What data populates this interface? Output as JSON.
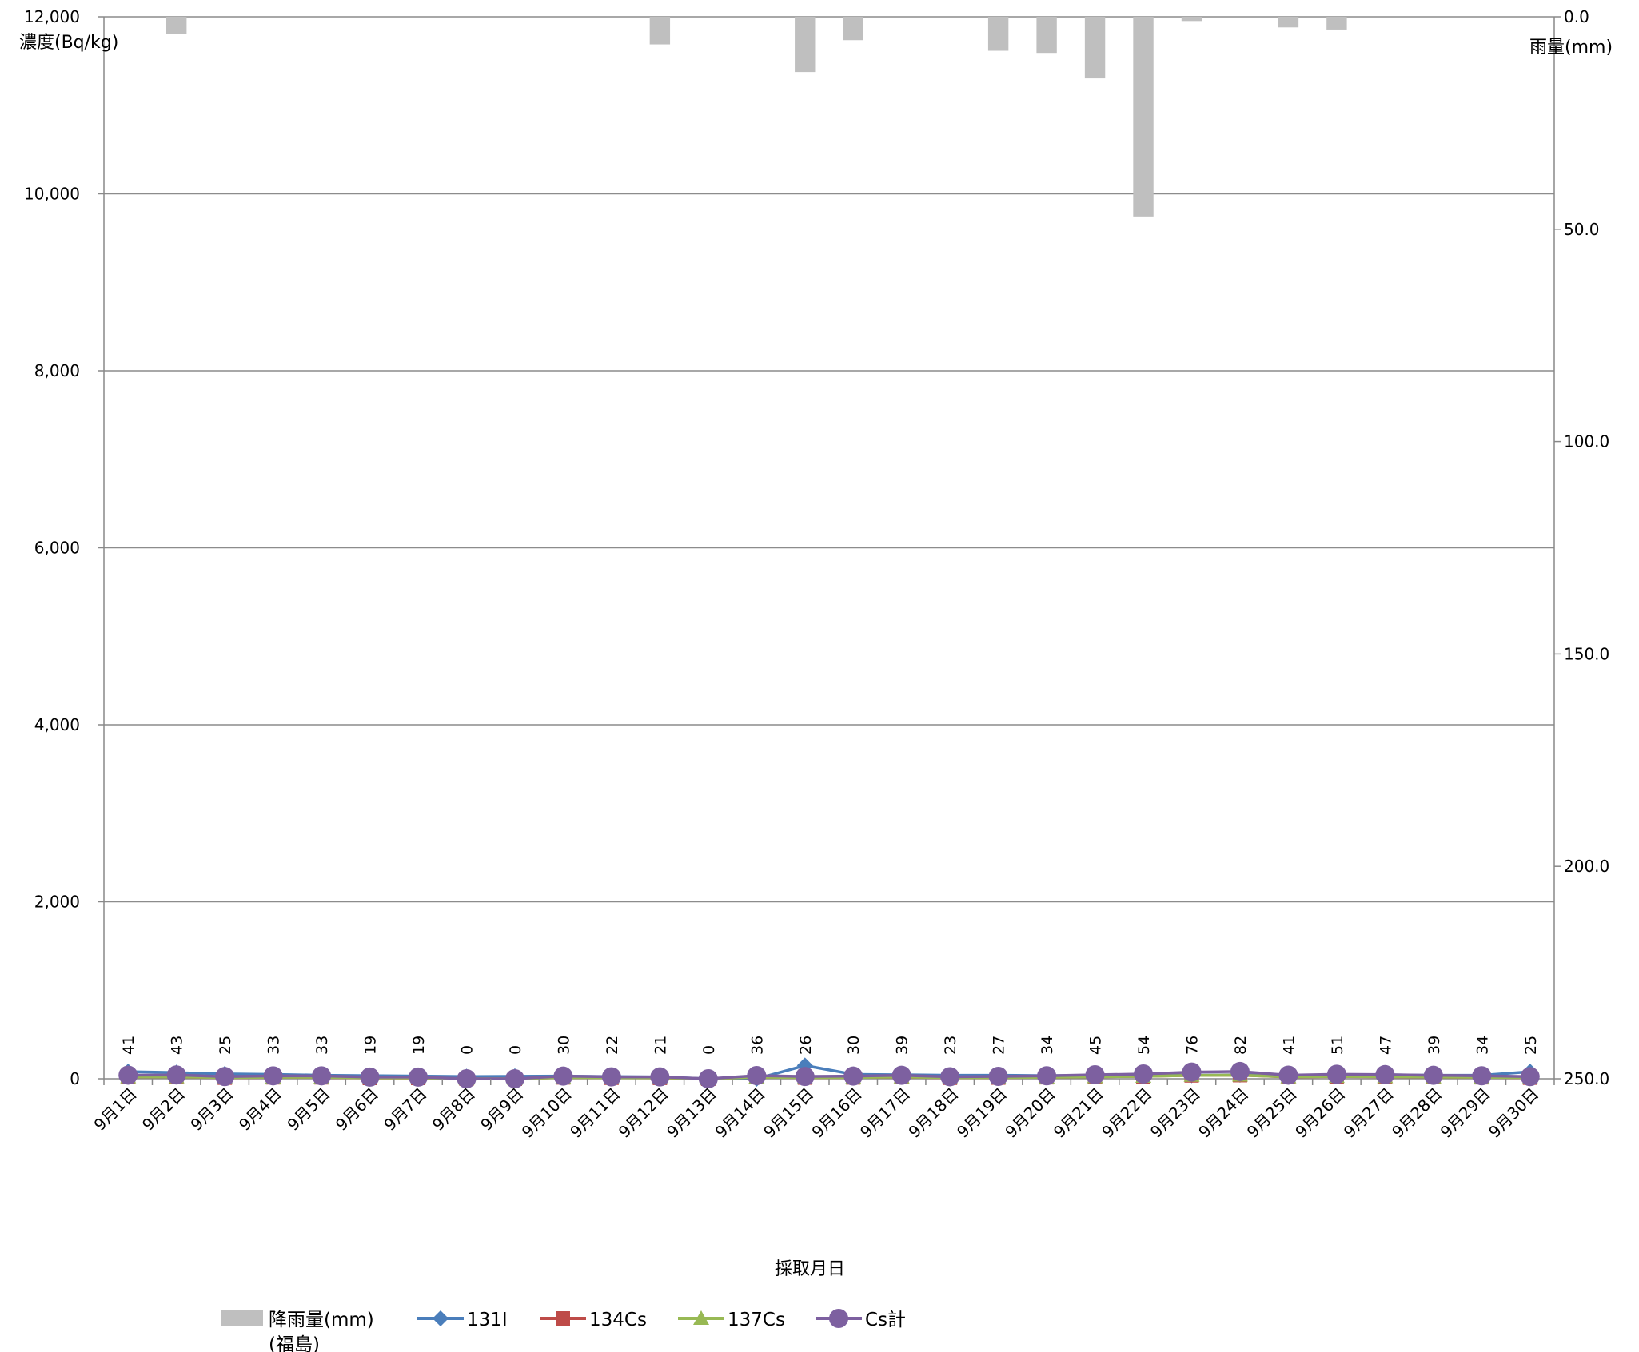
{
  "chart_data": {
    "type": "line",
    "xlabel": "採取月日",
    "ylabel_left": "濃度(Bq/kg)",
    "ylabel_right": "雨量(mm)",
    "ylim_left": [
      0,
      12000
    ],
    "ylim_right": [
      0,
      250
    ],
    "right_axis_inverted": true,
    "left_ticks": [
      "0",
      "2,000",
      "4,000",
      "6,000",
      "8,000",
      "10,000",
      "12,000"
    ],
    "right_ticks": [
      "0.0",
      "50.0",
      "100.0",
      "150.0",
      "200.0",
      "250.0"
    ],
    "grid": true,
    "legend_position": "bottom",
    "categories": [
      "9月1日",
      "9月2日",
      "9月3日",
      "9月4日",
      "9月5日",
      "9月6日",
      "9月7日",
      "9月8日",
      "9月9日",
      "9月10日",
      "9月11日",
      "9月12日",
      "9月13日",
      "9月14日",
      "9月15日",
      "9月16日",
      "9月17日",
      "9月18日",
      "9月19日",
      "9月20日",
      "9月21日",
      "9月22日",
      "9月23日",
      "9月24日",
      "9月25日",
      "9月26日",
      "9月27日",
      "9月28日",
      "9月29日",
      "9月30日"
    ],
    "data_labels": [
      "41",
      "43",
      "25",
      "33",
      "33",
      "19",
      "19",
      "0",
      "0",
      "30",
      "22",
      "21",
      "0",
      "36",
      "26",
      "30",
      "39",
      "23",
      "27",
      "34",
      "45",
      "54",
      "76",
      "82",
      "41",
      "51",
      "47",
      "39",
      "34",
      "25"
    ],
    "rain": {
      "name": "降雨量(mm)",
      "name_line2": "(福島)",
      "color": "#bfbfbf",
      "values": [
        0,
        4,
        0,
        0,
        0,
        0,
        0,
        0,
        0,
        0,
        0,
        6.5,
        0,
        0,
        13,
        5.5,
        0,
        0,
        8,
        8.5,
        14.5,
        47,
        1,
        0,
        2.5,
        3,
        0,
        0,
        0,
        0
      ]
    },
    "series": [
      {
        "name": "131I",
        "color": "#4a7ebb",
        "marker": "diamond",
        "values": [
          80,
          70,
          55,
          50,
          40,
          35,
          30,
          25,
          28,
          30,
          25,
          20,
          0,
          0,
          150,
          50,
          45,
          40,
          40,
          35,
          40,
          45,
          40,
          45,
          40,
          42,
          45,
          40,
          40,
          80
        ]
      },
      {
        "name": "134Cs",
        "color": "#be4b48",
        "marker": "square",
        "values": [
          20,
          21,
          12,
          16,
          16,
          9,
          9,
          0,
          0,
          15,
          11,
          10,
          0,
          18,
          13,
          15,
          19,
          11,
          13,
          17,
          22,
          27,
          38,
          41,
          20,
          25,
          23,
          19,
          17,
          12
        ]
      },
      {
        "name": "137Cs",
        "color": "#98b954",
        "marker": "triangle",
        "values": [
          21,
          22,
          13,
          17,
          17,
          10,
          10,
          0,
          0,
          15,
          11,
          11,
          0,
          18,
          13,
          15,
          20,
          12,
          14,
          17,
          23,
          27,
          38,
          41,
          21,
          26,
          24,
          20,
          17,
          13
        ]
      },
      {
        "name": "Cs計",
        "color": "#7d60a0",
        "marker": "circle",
        "values": [
          41,
          43,
          25,
          33,
          33,
          19,
          19,
          0,
          0,
          30,
          22,
          21,
          0,
          36,
          26,
          30,
          39,
          23,
          27,
          34,
          45,
          54,
          76,
          82,
          41,
          51,
          47,
          39,
          34,
          25
        ]
      }
    ]
  }
}
